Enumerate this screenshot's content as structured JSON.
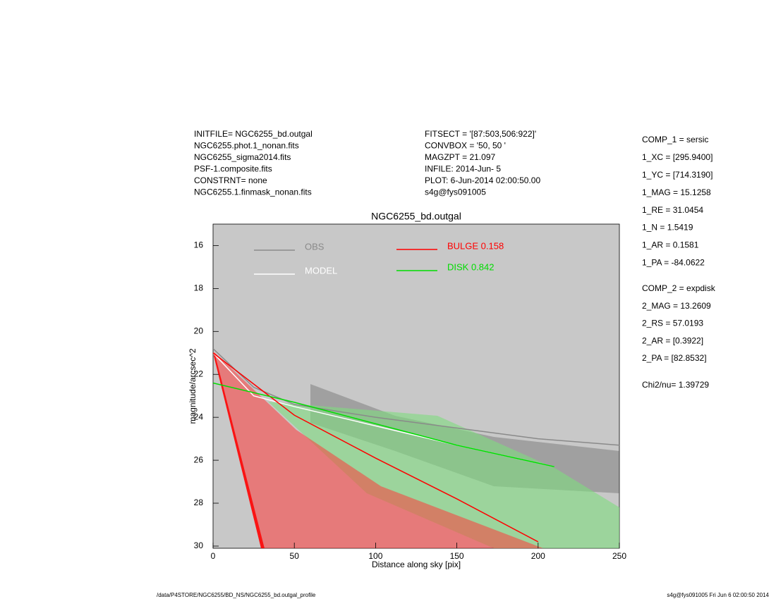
{
  "chart_data": {
    "type": "line",
    "title": "NGC6255_bd.outgal",
    "xlabel": "Distance along sky [pix]",
    "ylabel": "magnitude/arcsec^2",
    "xlim": [
      0,
      250
    ],
    "ylim": [
      15,
      30.1
    ],
    "y_inverted": true,
    "xticks": [
      0,
      50,
      100,
      150,
      200,
      250
    ],
    "yticks": [
      16,
      18,
      20,
      22,
      24,
      26,
      28,
      30
    ],
    "background": "#c8c8c8",
    "series": [
      {
        "name": "OBS",
        "color": "#8a8a8a",
        "x": [
          0,
          25,
          50,
          100,
          150,
          200,
          250
        ],
        "values": [
          20.8,
          22.6,
          23.4,
          24.0,
          24.5,
          25.0,
          25.3
        ]
      },
      {
        "name": "MODEL",
        "color": "#ffffff",
        "x": [
          0,
          25,
          50,
          100,
          150,
          210
        ],
        "values": [
          21.0,
          23.0,
          23.5,
          24.4,
          25.3,
          26.3
        ]
      },
      {
        "name": "BULGE  0.158",
        "color": "#ff0000",
        "x": [
          0,
          50,
          100,
          150,
          200
        ],
        "values": [
          21.0,
          23.9,
          25.9,
          27.8,
          29.8
        ]
      },
      {
        "name": "DISK  0.842",
        "color": "#00dd00",
        "x": [
          0,
          50,
          100,
          150,
          210
        ],
        "values": [
          22.4,
          23.3,
          24.3,
          25.3,
          26.3
        ]
      }
    ],
    "header_left": [
      "INITFILE= NGC6255_bd.outgal",
      "NGC6255.phot.1_nonan.fits",
      "NGC6255_sigma2014.fits",
      "PSF-1.composite.fits",
      "CONSTRNT= none",
      "NGC6255.1.finmask_nonan.fits"
    ],
    "header_mid": [
      "FITSECT = '[87:503,506:922]'",
      "CONVBOX = '50, 50  '",
      "MAGZPT =            21.097",
      "INFILE: 2014-Jun- 5",
      "PLOT:  6-Jun-2014 02:00:50.00",
      "s4g@fys091005"
    ],
    "params_comp1": [
      "COMP_1  = sersic",
      "1_XC    = [295.9400]",
      "1_YC    = [714.3190]",
      "1_MAG   = 15.1258",
      "1_RE    = 31.0454",
      "1_N     = 1.5419",
      "1_AR    = 0.1581",
      "1_PA    = -84.0622"
    ],
    "params_comp2": [
      "COMP_2  = expdisk",
      "2_MAG   = 13.2609",
      "2_RS    = 57.0193",
      "2_AR    = [0.3922]",
      "2_PA    = [82.8532]"
    ],
    "chi2": "Chi2/nu=      1.39729",
    "footer_left": "/data/P4STORE/NGC6255/BD_NS/NGC6255_bd.outgal_profile",
    "footer_right": "s4g@fys091005  Fri Jun  6 02:00:50 2014"
  }
}
